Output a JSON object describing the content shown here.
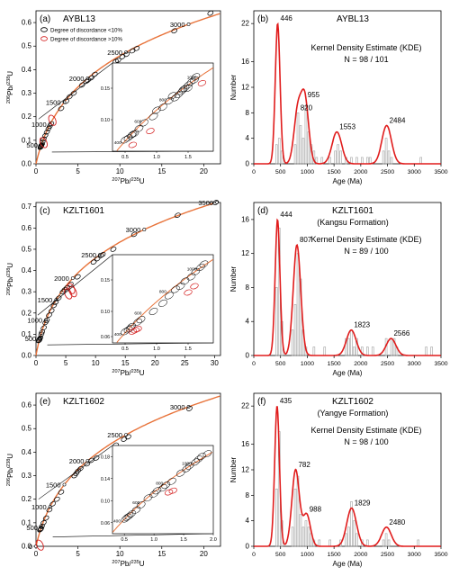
{
  "colors": {
    "concordia": "#e8733a",
    "concordant": "#000000",
    "discordant": "#d42020",
    "kde": "#e01c1c",
    "hist": "#a0a0a0"
  },
  "chart_data": [
    {
      "type": "scatter",
      "panel": "(a)",
      "sample": "AYBL13",
      "xlabel_base": "Pb/",
      "xlabel": "207Pb/235U",
      "ylabel": "206Pb/238U",
      "xlim": [
        0,
        22
      ],
      "ylim": [
        0,
        0.65
      ],
      "xticks": [
        0,
        5,
        10,
        15,
        20
      ],
      "yticks": [
        0.0,
        0.1,
        0.2,
        0.3,
        0.4,
        0.5,
        0.6
      ],
      "age_labels": [
        500,
        1000,
        1500,
        2000,
        2500,
        3000
      ],
      "legend": [
        "Degree of discordance <10%",
        "Degree of discordance >10%"
      ],
      "concordant": [
        [
          0.55,
          0.07
        ],
        [
          0.6,
          0.075
        ],
        [
          0.62,
          0.078
        ],
        [
          0.58,
          0.072
        ],
        [
          0.7,
          0.082
        ],
        [
          0.78,
          0.092
        ],
        [
          0.9,
          0.105
        ],
        [
          1.1,
          0.12
        ],
        [
          1.3,
          0.135
        ],
        [
          1.5,
          0.15
        ],
        [
          1.65,
          0.16
        ],
        [
          1.8,
          0.17
        ],
        [
          3.0,
          0.235
        ],
        [
          3.6,
          0.265
        ],
        [
          4.0,
          0.285
        ],
        [
          4.5,
          0.3
        ],
        [
          5.5,
          0.335
        ],
        [
          6.0,
          0.35
        ],
        [
          6.2,
          0.355
        ],
        [
          6.6,
          0.365
        ],
        [
          7.0,
          0.38
        ],
        [
          9.5,
          0.435
        ],
        [
          9.8,
          0.44
        ],
        [
          10.3,
          0.455
        ],
        [
          10.8,
          0.465
        ],
        [
          11.5,
          0.48
        ],
        [
          12.0,
          0.49
        ],
        [
          16.5,
          0.565
        ],
        [
          20.8,
          0.64
        ]
      ],
      "discordant": [
        [
          1.95,
          0.185
        ],
        [
          0.9,
          0.09
        ]
      ],
      "inset": {
        "xlim": [
          0.3,
          1.9
        ],
        "ylim": [
          0.05,
          0.19
        ],
        "xticks": [
          0.5,
          1.0,
          1.5
        ],
        "yticks": [
          0.1,
          0.15
        ],
        "age_labels": [
          400,
          600,
          800,
          1000
        ],
        "concordant": [
          [
            0.5,
            0.068
          ],
          [
            0.55,
            0.071
          ],
          [
            0.6,
            0.075
          ],
          [
            0.65,
            0.078
          ],
          [
            0.62,
            0.077
          ],
          [
            0.72,
            0.086
          ],
          [
            0.8,
            0.095
          ],
          [
            0.95,
            0.105
          ],
          [
            1.0,
            0.115
          ],
          [
            1.1,
            0.12
          ],
          [
            1.2,
            0.13
          ],
          [
            1.3,
            0.135
          ],
          [
            1.35,
            0.14
          ],
          [
            1.4,
            0.145
          ],
          [
            1.45,
            0.15
          ],
          [
            1.5,
            0.155
          ],
          [
            1.55,
            0.16
          ],
          [
            1.6,
            0.163
          ],
          [
            1.62,
            0.168
          ],
          [
            1.5,
            0.15
          ],
          [
            1.42,
            0.148
          ],
          [
            1.25,
            0.138
          ]
        ],
        "discordant": [
          [
            0.62,
            0.06
          ],
          [
            0.9,
            0.082
          ],
          [
            1.72,
            0.158
          ]
        ]
      }
    },
    {
      "type": "bar",
      "panel": "(b)",
      "sample": "AYBL13",
      "formation": "",
      "kde_title": "Kernel Density Estimate (KDE)",
      "n_text": "N = 98 / 101",
      "xlabel": "Age (Ma)",
      "ylabel": "Number",
      "xlim": [
        0,
        3500
      ],
      "ylim": [
        0,
        24
      ],
      "xticks": [
        0,
        500,
        1000,
        1500,
        2000,
        2500,
        3000,
        3500
      ],
      "yticks": [
        0,
        4,
        8,
        12,
        16,
        22
      ],
      "peaks": [
        {
          "age": 446,
          "value": 22
        },
        {
          "age": 820,
          "value": 8
        },
        {
          "age": 955,
          "value": 10
        },
        {
          "age": 1553,
          "value": 5
        },
        {
          "age": 2484,
          "value": 6
        }
      ],
      "bins": [
        [
          400,
          3
        ],
        [
          450,
          4
        ],
        [
          500,
          2
        ],
        [
          750,
          3
        ],
        [
          800,
          8
        ],
        [
          850,
          6
        ],
        [
          900,
          4
        ],
        [
          950,
          9
        ],
        [
          1000,
          5
        ],
        [
          1050,
          3
        ],
        [
          1100,
          2
        ],
        [
          1150,
          1
        ],
        [
          1250,
          1
        ],
        [
          1400,
          1
        ],
        [
          1500,
          2
        ],
        [
          1550,
          3
        ],
        [
          1600,
          2
        ],
        [
          1700,
          1
        ],
        [
          1800,
          1
        ],
        [
          1900,
          1
        ],
        [
          2000,
          1
        ],
        [
          2100,
          1
        ],
        [
          2150,
          1
        ],
        [
          2400,
          2
        ],
        [
          2450,
          4
        ],
        [
          2500,
          2
        ],
        [
          2550,
          1
        ],
        [
          3100,
          1
        ]
      ]
    },
    {
      "type": "scatter",
      "panel": "(c)",
      "sample": "KZLT1601",
      "xlabel_base": "Pb/",
      "xlabel": "207Pb/235U",
      "ylabel": "206Pb/238U",
      "xlim": [
        0,
        31
      ],
      "ylim": [
        0,
        0.72
      ],
      "xticks": [
        0,
        5,
        10,
        15,
        20,
        25,
        30
      ],
      "yticks": [
        0.0,
        0.1,
        0.2,
        0.3,
        0.4,
        0.5,
        0.6,
        0.7
      ],
      "age_labels": [
        500,
        1000,
        1500,
        2000,
        2500,
        3000,
        3500
      ],
      "concordant": [
        [
          0.5,
          0.07
        ],
        [
          0.55,
          0.073
        ],
        [
          0.62,
          0.078
        ],
        [
          0.7,
          0.083
        ],
        [
          0.9,
          0.1
        ],
        [
          1.0,
          0.11
        ],
        [
          1.3,
          0.13
        ],
        [
          1.6,
          0.155
        ],
        [
          1.8,
          0.165
        ],
        [
          2.2,
          0.19
        ],
        [
          2.6,
          0.21
        ],
        [
          3.0,
          0.235
        ],
        [
          3.3,
          0.25
        ],
        [
          3.8,
          0.27
        ],
        [
          4.5,
          0.3
        ],
        [
          4.8,
          0.31
        ],
        [
          5.2,
          0.32
        ],
        [
          5.8,
          0.335
        ],
        [
          7.0,
          0.37
        ],
        [
          9.7,
          0.44
        ],
        [
          10.3,
          0.455
        ],
        [
          10.9,
          0.47
        ],
        [
          11.2,
          0.475
        ],
        [
          13.0,
          0.5
        ],
        [
          16.5,
          0.57
        ],
        [
          23.8,
          0.66
        ],
        [
          30.2,
          0.72
        ]
      ],
      "discordant": [
        [
          5.4,
          0.29
        ],
        [
          6.2,
          0.3
        ],
        [
          5.9,
          0.315
        ]
      ],
      "inset": {
        "xlim": [
          0.3,
          1.9
        ],
        "ylim": [
          0.05,
          0.19
        ],
        "xticks": [
          0.5,
          1.0,
          1.5
        ],
        "yticks": [
          0.06,
          0.1,
          0.15
        ],
        "age_labels": [
          400,
          600,
          800,
          1000
        ],
        "concordant": [
          [
            0.5,
            0.068
          ],
          [
            0.55,
            0.071
          ],
          [
            0.58,
            0.073
          ],
          [
            0.6,
            0.076
          ],
          [
            0.7,
            0.083
          ],
          [
            0.75,
            0.087
          ],
          [
            0.95,
            0.1
          ],
          [
            1.1,
            0.113
          ],
          [
            1.2,
            0.125
          ],
          [
            1.3,
            0.135
          ],
          [
            1.38,
            0.14
          ],
          [
            1.45,
            0.148
          ],
          [
            1.55,
            0.155
          ],
          [
            1.62,
            0.163
          ],
          [
            1.7,
            0.17
          ],
          [
            1.75,
            0.175
          ]
        ],
        "discordant": [
          [
            0.62,
            0.068
          ],
          [
            0.66,
            0.07
          ],
          [
            0.7,
            0.072
          ],
          [
            1.5,
            0.13
          ],
          [
            1.6,
            0.14
          ]
        ]
      }
    },
    {
      "type": "bar",
      "panel": "(d)",
      "sample": "KZLT1601",
      "formation": "(Kangsu Formation)",
      "kde_title": "Kernel Density Estimate (KDE)",
      "n_text": "N = 89 / 100",
      "xlabel": "Age (Ma)",
      "ylabel": "Number",
      "xlim": [
        0,
        3500
      ],
      "ylim": [
        0,
        18
      ],
      "xticks": [
        0,
        500,
        1000,
        1500,
        2000,
        2500,
        3000,
        3500
      ],
      "yticks": [
        0,
        4,
        8,
        12,
        16
      ],
      "peaks": [
        {
          "age": 444,
          "value": 16
        },
        {
          "age": 807,
          "value": 13
        },
        {
          "age": 1823,
          "value": 3
        },
        {
          "age": 2566,
          "value": 2
        }
      ],
      "bins": [
        [
          400,
          8
        ],
        [
          450,
          15
        ],
        [
          500,
          4
        ],
        [
          700,
          3
        ],
        [
          750,
          6
        ],
        [
          800,
          12
        ],
        [
          850,
          9
        ],
        [
          900,
          3
        ],
        [
          950,
          1
        ],
        [
          1100,
          1
        ],
        [
          1300,
          1
        ],
        [
          1700,
          2
        ],
        [
          1750,
          2
        ],
        [
          1800,
          3
        ],
        [
          1850,
          1
        ],
        [
          1900,
          2
        ],
        [
          2000,
          1
        ],
        [
          2100,
          1
        ],
        [
          2200,
          1
        ],
        [
          2450,
          2
        ],
        [
          2550,
          2
        ],
        [
          2600,
          2
        ],
        [
          2650,
          1
        ],
        [
          3200,
          1
        ],
        [
          3300,
          1
        ]
      ]
    },
    {
      "type": "scatter",
      "panel": "(e)",
      "sample": "KZLT1602",
      "xlabel_base": "Pb/",
      "xlabel": "207Pb/235U",
      "ylabel": "206Pb/238U",
      "xlim": [
        0,
        22
      ],
      "ylim": [
        0,
        0.65
      ],
      "xticks": [
        0,
        5,
        10,
        15,
        20
      ],
      "yticks": [
        0.0,
        0.1,
        0.2,
        0.3,
        0.4,
        0.5,
        0.6
      ],
      "age_labels": [
        0,
        500,
        1000,
        1500,
        2000,
        2500,
        3000
      ],
      "concordant": [
        [
          0.5,
          0.07
        ],
        [
          0.55,
          0.072
        ],
        [
          0.6,
          0.075
        ],
        [
          0.7,
          0.085
        ],
        [
          0.9,
          0.1
        ],
        [
          1.2,
          0.12
        ],
        [
          1.6,
          0.155
        ],
        [
          2.0,
          0.18
        ],
        [
          2.5,
          0.2
        ],
        [
          3.0,
          0.23
        ],
        [
          4.6,
          0.3
        ],
        [
          4.8,
          0.31
        ],
        [
          5.0,
          0.32
        ],
        [
          5.3,
          0.33
        ],
        [
          6.1,
          0.35
        ],
        [
          6.6,
          0.365
        ],
        [
          7.2,
          0.375
        ],
        [
          9.5,
          0.43
        ],
        [
          10.5,
          0.455
        ],
        [
          11.0,
          0.465
        ],
        [
          18.3,
          0.585
        ]
      ],
      "discordant": [
        [
          0.45,
          0.005
        ]
      ],
      "inset": {
        "xlim": [
          0.3,
          2.0
        ],
        "ylim": [
          0.04,
          0.2
        ],
        "xticks": [
          0.5,
          1.0,
          1.5,
          2.0
        ],
        "yticks": [
          0.06,
          0.1,
          0.14,
          0.18
        ],
        "age_labels": [
          400,
          600,
          800,
          1000
        ],
        "concordant": [
          [
            0.52,
            0.067
          ],
          [
            0.55,
            0.07
          ],
          [
            0.58,
            0.072
          ],
          [
            0.62,
            0.076
          ],
          [
            0.7,
            0.083
          ],
          [
            0.78,
            0.092
          ],
          [
            0.9,
            0.105
          ],
          [
            1.0,
            0.112
          ],
          [
            1.05,
            0.118
          ],
          [
            1.15,
            0.123
          ],
          [
            1.2,
            0.128
          ],
          [
            1.3,
            0.135
          ],
          [
            1.45,
            0.15
          ],
          [
            1.55,
            0.158
          ],
          [
            1.6,
            0.163
          ],
          [
            1.7,
            0.17
          ],
          [
            1.75,
            0.175
          ],
          [
            1.8,
            0.18
          ],
          [
            1.9,
            0.185
          ]
        ],
        "discordant": [
          [
            1.25,
            0.115
          ],
          [
            1.32,
            0.118
          ]
        ]
      }
    },
    {
      "type": "bar",
      "panel": "(f)",
      "sample": "KZLT1602",
      "formation": "(Yangye Formation)",
      "kde_title": "Kernel Density Estimate (KDE)",
      "n_text": "N = 98 / 100",
      "xlabel": "Age (Ma)",
      "ylabel": "Number",
      "xlim": [
        0,
        3500
      ],
      "ylim": [
        0,
        24
      ],
      "xticks": [
        0,
        500,
        1000,
        1500,
        2000,
        2500,
        3000,
        3500
      ],
      "yticks": [
        0,
        4,
        8,
        12,
        16,
        22
      ],
      "peaks": [
        {
          "age": 435,
          "value": 22
        },
        {
          "age": 782,
          "value": 12
        },
        {
          "age": 988,
          "value": 5
        },
        {
          "age": 1829,
          "value": 6
        },
        {
          "age": 2480,
          "value": 3
        }
      ],
      "bins": [
        [
          400,
          9
        ],
        [
          450,
          18
        ],
        [
          500,
          4
        ],
        [
          700,
          3
        ],
        [
          750,
          9
        ],
        [
          800,
          11
        ],
        [
          850,
          5
        ],
        [
          900,
          3
        ],
        [
          950,
          4
        ],
        [
          1000,
          3
        ],
        [
          1050,
          2
        ],
        [
          1100,
          1
        ],
        [
          1200,
          1
        ],
        [
          1400,
          1
        ],
        [
          1600,
          1
        ],
        [
          1700,
          2
        ],
        [
          1750,
          3
        ],
        [
          1800,
          7
        ],
        [
          1850,
          4
        ],
        [
          1900,
          2
        ],
        [
          2000,
          1
        ],
        [
          2100,
          1
        ],
        [
          2400,
          1
        ],
        [
          2450,
          2
        ],
        [
          2500,
          1
        ],
        [
          3050,
          1
        ]
      ]
    }
  ]
}
